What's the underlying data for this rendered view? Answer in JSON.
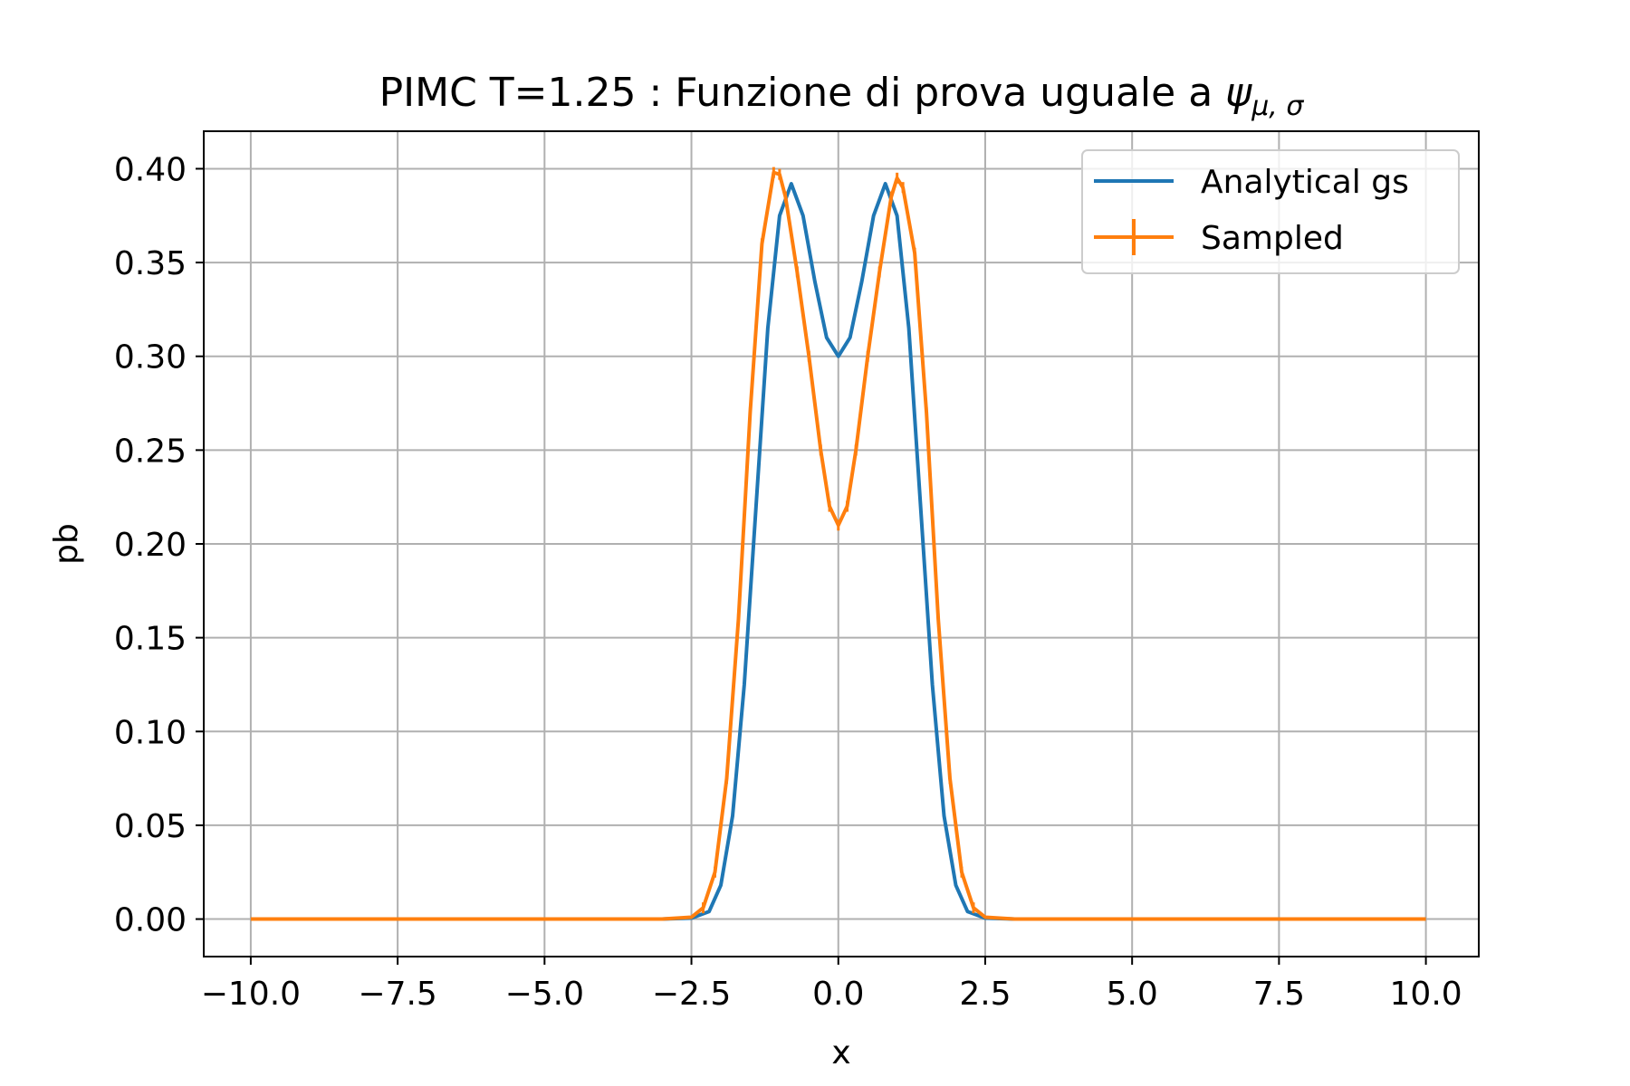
{
  "chart_data": {
    "type": "line",
    "title": "PIMC T=1.25 : Funzione di prova uguale a ",
    "title_symbol": "ψ",
    "title_subscript": "μ, σ",
    "xlabel": "x",
    "ylabel": "pb",
    "xlim": [
      -10.8,
      10.9
    ],
    "ylim": [
      -0.02,
      0.42
    ],
    "xticks": [
      -10,
      -7.5,
      -5,
      -2.5,
      0,
      2.5,
      5,
      7.5,
      10
    ],
    "xtick_labels": [
      "−10.0",
      "−7.5",
      "−5.0",
      "−2.5",
      "0.0",
      "2.5",
      "5.0",
      "7.5",
      "10.0"
    ],
    "yticks": [
      0,
      0.05,
      0.1,
      0.15,
      0.2,
      0.25,
      0.3,
      0.35,
      0.4
    ],
    "ytick_labels": [
      "0.00",
      "0.05",
      "0.10",
      "0.15",
      "0.20",
      "0.25",
      "0.30",
      "0.35",
      "0.40"
    ],
    "grid": true,
    "legend_position": "top-right",
    "series": [
      {
        "name": "Analytical gs",
        "color": "#1f77b4",
        "style": "line",
        "x": [
          -10,
          -3,
          -2.5,
          -2.2,
          -2.0,
          -1.8,
          -1.6,
          -1.4,
          -1.2,
          -1.0,
          -0.8,
          -0.6,
          -0.4,
          -0.2,
          0.0,
          0.2,
          0.4,
          0.6,
          0.8,
          1.0,
          1.2,
          1.4,
          1.6,
          1.8,
          2.0,
          2.2,
          2.5,
          3,
          10
        ],
        "values": [
          0,
          0,
          0.0005,
          0.004,
          0.018,
          0.055,
          0.125,
          0.22,
          0.315,
          0.375,
          0.392,
          0.375,
          0.34,
          0.31,
          0.3,
          0.31,
          0.34,
          0.375,
          0.392,
          0.375,
          0.315,
          0.22,
          0.125,
          0.055,
          0.018,
          0.004,
          0.0005,
          0,
          0
        ]
      },
      {
        "name": "Sampled",
        "color": "#ff7f0e",
        "style": "errorbar",
        "x": [
          -10,
          -3,
          -2.5,
          -2.3,
          -2.1,
          -1.9,
          -1.7,
          -1.5,
          -1.3,
          -1.1,
          -1.0,
          -0.9,
          -0.7,
          -0.5,
          -0.3,
          -0.15,
          0.0,
          0.15,
          0.3,
          0.5,
          0.7,
          0.9,
          1.0,
          1.1,
          1.3,
          1.5,
          1.7,
          1.9,
          2.1,
          2.3,
          2.5,
          3,
          10
        ],
        "values": [
          0,
          0,
          0.001,
          0.006,
          0.025,
          0.075,
          0.16,
          0.27,
          0.36,
          0.398,
          0.397,
          0.385,
          0.345,
          0.3,
          0.25,
          0.22,
          0.21,
          0.22,
          0.25,
          0.3,
          0.345,
          0.385,
          0.395,
          0.39,
          0.355,
          0.27,
          0.16,
          0.075,
          0.025,
          0.006,
          0.001,
          0,
          0
        ]
      }
    ]
  }
}
